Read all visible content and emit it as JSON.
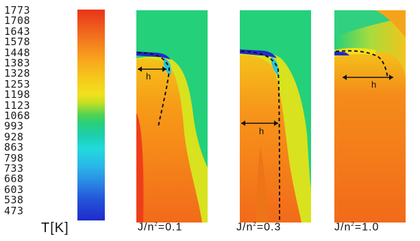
{
  "colorbar": {
    "ticks": [
      "1773",
      "1708",
      "1643",
      "1578",
      "1448",
      "1383",
      "1328",
      "1253",
      "1198",
      "1123",
      "1068",
      "993",
      "928",
      "863",
      "798",
      "733",
      "668",
      "603",
      "538",
      "473"
    ],
    "unit_label": "T[K]"
  },
  "panels": [
    {
      "caption_base": "J/n",
      "caption_sup": "2",
      "caption_tail": "=0.1",
      "marker_label": "h"
    },
    {
      "caption_base": "J/n",
      "caption_sup": "2",
      "caption_tail": "=0.3",
      "marker_label": "h"
    },
    {
      "caption_base": "J/n",
      "caption_sup": "2",
      "caption_tail": "=1.0",
      "marker_label": "h"
    }
  ],
  "colors": {
    "background_field": "#24d07a",
    "hot": "#f26a1a",
    "warm": "#f4c21a",
    "jet": "#1f2bcc"
  }
}
